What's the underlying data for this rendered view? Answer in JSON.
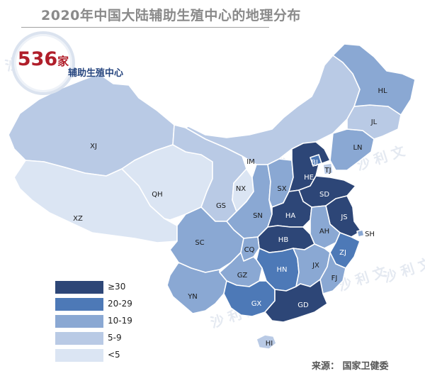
{
  "title": "2020年中国大陆辅助生殖中心的地理分布",
  "summary": {
    "count": "536",
    "unit": "家",
    "caption": "辅助生殖中心"
  },
  "source": "来源： 国家卫健委",
  "watermark": "沙 利 文",
  "legend": [
    {
      "label": "≥30",
      "color": "#2d4677"
    },
    {
      "label": "20-29",
      "color": "#4d79b7"
    },
    {
      "label": "10-19",
      "color": "#8aa8d3"
    },
    {
      "label": "5-9",
      "color": "#b9cae5"
    },
    {
      "label": "<5",
      "color": "#dbe5f3"
    }
  ],
  "provinces": [
    {
      "code": "XJ",
      "bin": 3
    },
    {
      "code": "XZ",
      "bin": 4
    },
    {
      "code": "QH",
      "bin": 4
    },
    {
      "code": "GS",
      "bin": 3
    },
    {
      "code": "IM",
      "bin": 3
    },
    {
      "code": "NX",
      "bin": 4
    },
    {
      "code": "SN",
      "bin": 2
    },
    {
      "code": "SX",
      "bin": 2
    },
    {
      "code": "HE",
      "bin": 0
    },
    {
      "code": "BJ",
      "bin": 1
    },
    {
      "code": "TJ",
      "bin": 3
    },
    {
      "code": "LN",
      "bin": 2
    },
    {
      "code": "JL",
      "bin": 3
    },
    {
      "code": "HL",
      "bin": 2
    },
    {
      "code": "SD",
      "bin": 0
    },
    {
      "code": "HA",
      "bin": 0
    },
    {
      "code": "JS",
      "bin": 0
    },
    {
      "code": "SH",
      "bin": 2
    },
    {
      "code": "AH",
      "bin": 2
    },
    {
      "code": "ZJ",
      "bin": 1
    },
    {
      "code": "HB",
      "bin": 0
    },
    {
      "code": "SC",
      "bin": 2
    },
    {
      "code": "CQ",
      "bin": 2
    },
    {
      "code": "HN",
      "bin": 1
    },
    {
      "code": "JX",
      "bin": 2
    },
    {
      "code": "FJ",
      "bin": 2
    },
    {
      "code": "GZ",
      "bin": 2
    },
    {
      "code": "YN",
      "bin": 2
    },
    {
      "code": "GX",
      "bin": 1
    },
    {
      "code": "GD",
      "bin": 0
    },
    {
      "code": "HI",
      "bin": 3
    }
  ]
}
